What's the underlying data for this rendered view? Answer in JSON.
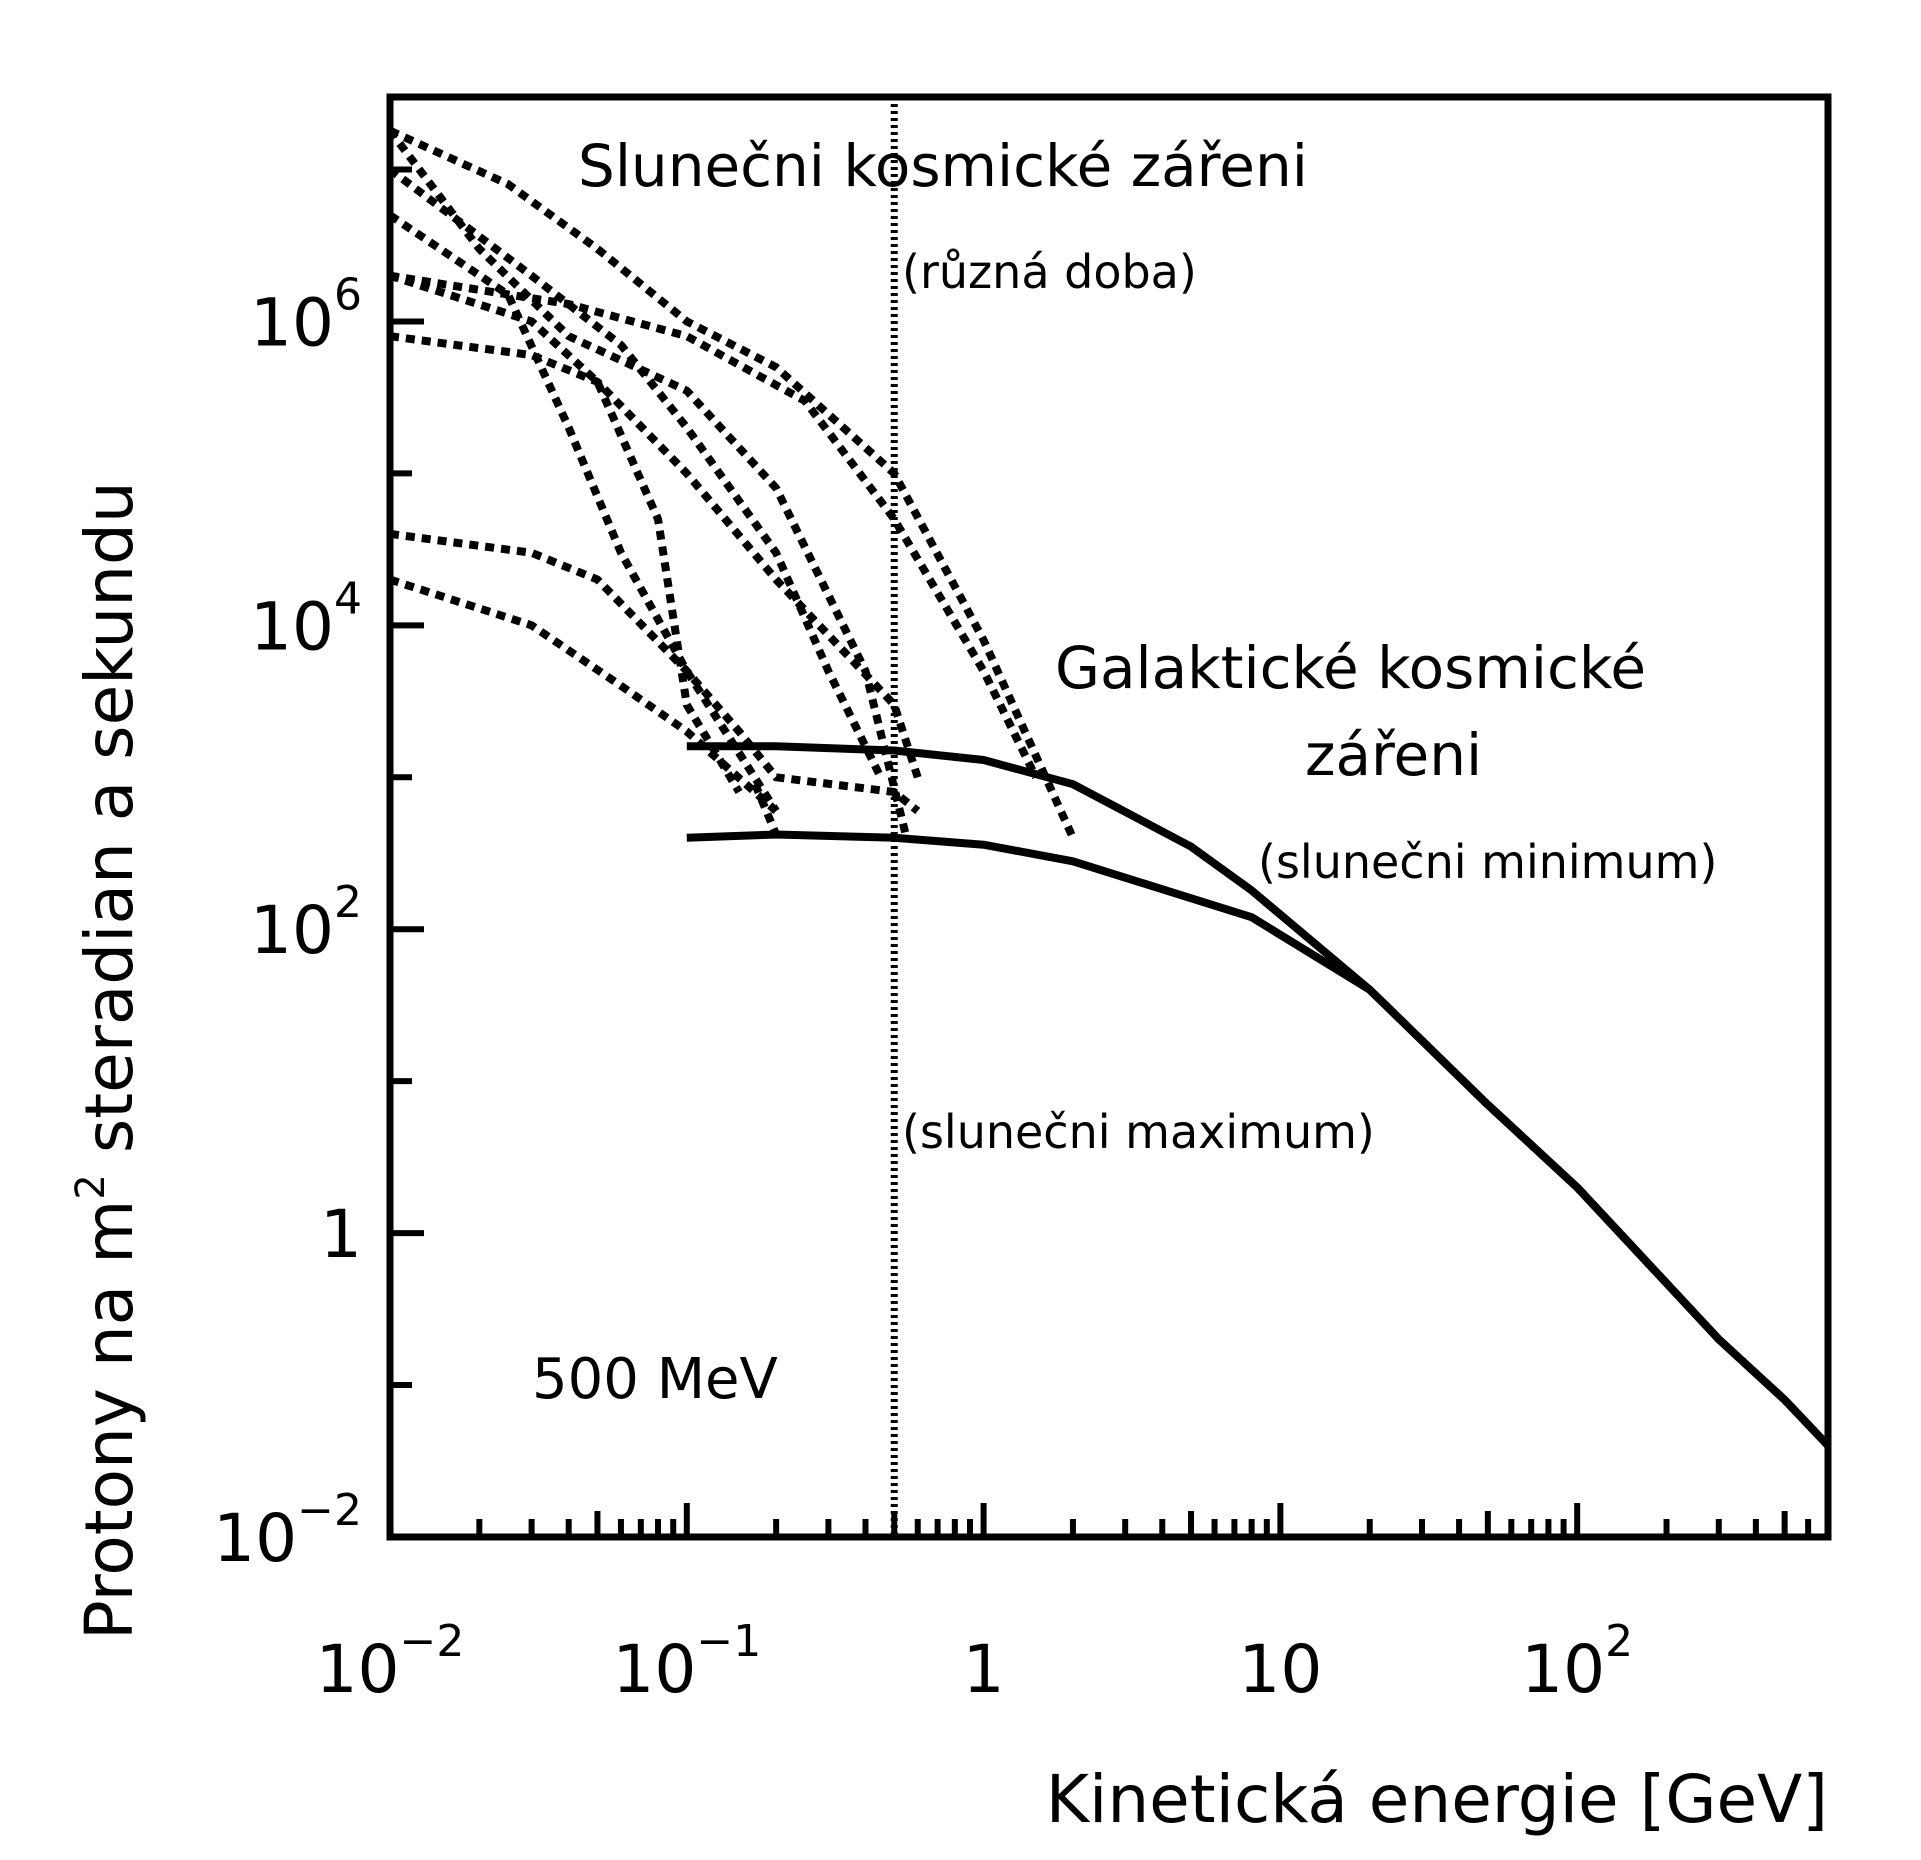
{
  "chart_data": {
    "type": "line",
    "title": "",
    "xlabel": "Kinetická energie [GeV]",
    "ylabel_main": "Protony na m",
    "ylabel_sup": "2",
    "ylabel_rest": " steradian a sekundu",
    "x_scale": "log",
    "y_scale": "log",
    "xlim": [
      0.01,
      700
    ],
    "ylim": [
      0.01,
      30000000
    ],
    "grid": false,
    "x_ticks": [
      {
        "value": 0.01,
        "base": "10",
        "exp": "−2"
      },
      {
        "value": 0.1,
        "base": "10",
        "exp": "−1"
      },
      {
        "value": 1,
        "base": "1",
        "exp": ""
      },
      {
        "value": 10,
        "base": "10",
        "exp": ""
      },
      {
        "value": 100,
        "base": "10",
        "exp": "2"
      }
    ],
    "y_ticks": [
      {
        "value": 0.01,
        "base": "10",
        "exp": "−2"
      },
      {
        "value": 1,
        "base": "1",
        "exp": ""
      },
      {
        "value": 100,
        "base": "10",
        "exp": "2"
      },
      {
        "value": 10000,
        "base": "10",
        "exp": "4"
      },
      {
        "value": 1000000,
        "base": "10",
        "exp": "6"
      }
    ],
    "reference_line": {
      "x": 0.5,
      "label": "500 MeV",
      "style": "dotted"
    },
    "annotations": {
      "solar_title": "Slunečni kosmické zářeni",
      "solar_sub": "(různá doba)",
      "galactic_title_1": "Galaktické kosmické",
      "galactic_title_2": "zářeni",
      "solar_min": "(slunečni minimum)",
      "solar_max": "(slunečni maximum)"
    },
    "galactic_series": [
      {
        "label_ref": "solar_min",
        "points": [
          [
            0.1,
            1600
          ],
          [
            0.2,
            1600
          ],
          [
            0.5,
            1500
          ],
          [
            1.0,
            1300
          ],
          [
            2.0,
            900
          ],
          [
            5.0,
            350
          ],
          [
            8.0,
            180
          ],
          [
            20.0,
            40
          ],
          [
            50.0,
            7
          ],
          [
            100.0,
            2
          ],
          [
            300.0,
            0.2
          ],
          [
            500.0,
            0.08
          ],
          [
            700.0,
            0.04
          ]
        ]
      },
      {
        "label_ref": "solar_max",
        "points": [
          [
            0.1,
            400
          ],
          [
            0.2,
            420
          ],
          [
            0.5,
            400
          ],
          [
            1.0,
            360
          ],
          [
            2.0,
            280
          ],
          [
            8.0,
            120
          ],
          [
            20.0,
            40
          ],
          [
            50.0,
            7
          ],
          [
            100.0,
            2
          ],
          [
            300.0,
            0.2
          ],
          [
            500.0,
            0.08
          ],
          [
            700.0,
            0.04
          ]
        ]
      }
    ],
    "solar_series": [
      {
        "points": [
          [
            0.01,
            18000000
          ],
          [
            0.025,
            8000000
          ],
          [
            0.05,
            3000000
          ],
          [
            0.1,
            1000000
          ],
          [
            0.2,
            500000
          ],
          [
            0.5,
            100000
          ],
          [
            1.0,
            8000
          ],
          [
            2.0,
            400
          ]
        ]
      },
      {
        "points": [
          [
            0.01,
            2000000
          ],
          [
            0.04,
            1300000
          ],
          [
            0.1,
            800000
          ],
          [
            0.25,
            300000
          ],
          [
            0.5,
            50000
          ],
          [
            1.0,
            5000
          ],
          [
            1.5,
            1000
          ]
        ]
      },
      {
        "points": [
          [
            0.01,
            18000000
          ],
          [
            0.02,
            3000000
          ],
          [
            0.04,
            800000
          ],
          [
            0.1,
            350000
          ],
          [
            0.2,
            80000
          ],
          [
            0.4,
            5000
          ],
          [
            0.55,
            400
          ]
        ]
      },
      {
        "points": [
          [
            0.01,
            10000000
          ],
          [
            0.03,
            2000000
          ],
          [
            0.06,
            700000
          ],
          [
            0.1,
            200000
          ],
          [
            0.2,
            30000
          ],
          [
            0.3,
            5000
          ],
          [
            0.45,
            1000
          ]
        ]
      },
      {
        "points": [
          [
            0.01,
            800000
          ],
          [
            0.03,
            600000
          ],
          [
            0.05,
            400000
          ],
          [
            0.1,
            100000
          ],
          [
            0.2,
            20000
          ],
          [
            0.5,
            3000
          ],
          [
            0.6,
            1000
          ]
        ]
      },
      {
        "points": [
          [
            0.01,
            5000000
          ],
          [
            0.025,
            1500000
          ],
          [
            0.04,
            200000
          ],
          [
            0.06,
            30000
          ],
          [
            0.1,
            5000
          ],
          [
            0.2,
            600
          ]
        ]
      },
      {
        "points": [
          [
            0.01,
            40000
          ],
          [
            0.03,
            30000
          ],
          [
            0.05,
            20000
          ],
          [
            0.1,
            5000
          ],
          [
            0.15,
            2000
          ],
          [
            0.2,
            1000
          ],
          [
            0.5,
            800
          ],
          [
            0.6,
            600
          ]
        ]
      },
      {
        "points": [
          [
            0.01,
            20000
          ],
          [
            0.03,
            10000
          ],
          [
            0.06,
            4000
          ],
          [
            0.1,
            2000
          ],
          [
            0.2,
            600
          ]
        ]
      },
      {
        "points": [
          [
            0.01,
            2000000
          ],
          [
            0.03,
            1000000
          ],
          [
            0.05,
            400000
          ],
          [
            0.08,
            50000
          ],
          [
            0.1,
            3000
          ],
          [
            0.15,
            800
          ]
        ]
      }
    ]
  }
}
